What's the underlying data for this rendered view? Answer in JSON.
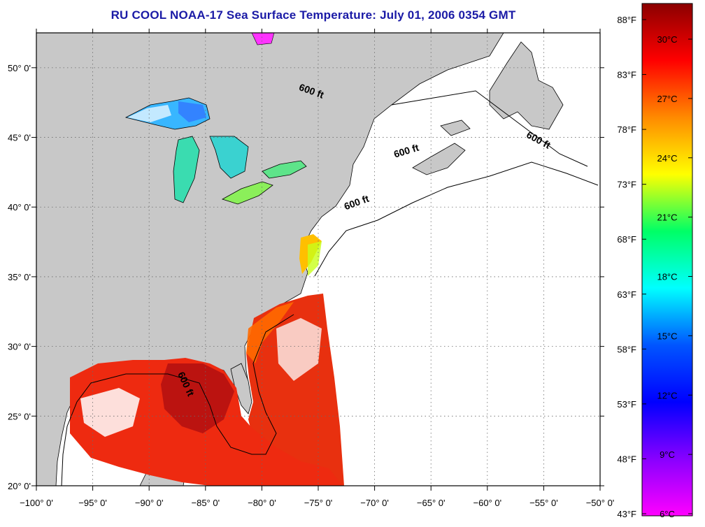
{
  "title": "RU COOL  NOAA-17  Sea Surface Temperature:  July 01, 2006 0354 GMT",
  "map": {
    "lon_range": [
      -100,
      -50
    ],
    "lat_range": [
      20,
      52.5
    ],
    "x_ticks": [
      {
        "lon": -100,
        "label": "−100° 0'"
      },
      {
        "lon": -95,
        "label": "−95° 0'"
      },
      {
        "lon": -90,
        "label": "−90° 0'"
      },
      {
        "lon": -85,
        "label": "−85° 0'"
      },
      {
        "lon": -80,
        "label": "−80° 0'"
      },
      {
        "lon": -75,
        "label": "−75° 0'"
      },
      {
        "lon": -70,
        "label": "−70° 0'"
      },
      {
        "lon": -65,
        "label": "−65° 0'"
      },
      {
        "lon": -60,
        "label": "−60° 0'"
      },
      {
        "lon": -55,
        "label": "−55° 0'"
      },
      {
        "lon": -50,
        "label": "−50° 0'"
      }
    ],
    "y_ticks": [
      {
        "lat": 20,
        "label": "20° 0'"
      },
      {
        "lat": 25,
        "label": "25° 0'"
      },
      {
        "lat": 30,
        "label": "30° 0'"
      },
      {
        "lat": 35,
        "label": "35° 0'"
      },
      {
        "lat": 40,
        "label": "40° 0'"
      },
      {
        "lat": 45,
        "label": "45° 0'"
      },
      {
        "lat": 50,
        "label": "50° 0'"
      }
    ],
    "contour_labels": [
      {
        "text": "600 ft",
        "lon": -75.7,
        "lat": 48.1,
        "angle": 20
      },
      {
        "text": "600 ft",
        "lon": -55.6,
        "lat": 44.6,
        "angle": 28
      },
      {
        "text": "600 ft",
        "lon": -67.1,
        "lat": 43.8,
        "angle": -17
      },
      {
        "text": "600 ft",
        "lon": -71.5,
        "lat": 40.1,
        "angle": -20
      },
      {
        "text": "600 ft",
        "lon": -87.0,
        "lat": 27.2,
        "angle": 65
      }
    ],
    "colors": {
      "land": "#c8c8c8",
      "no_data": "#ffffff",
      "gridline": "#6a6a6a"
    }
  },
  "colorbar": {
    "celsius": [
      "30°C",
      "27°C",
      "24°C",
      "21°C",
      "18°C",
      "15°C",
      "12°C",
      "9°C",
      "6°C"
    ],
    "fahrenheit": [
      "88°F",
      "83°F",
      "78°F",
      "73°F",
      "68°F",
      "63°F",
      "58°F",
      "53°F",
      "48°F",
      "43°F"
    ],
    "stops": [
      "#8b0000",
      "#ff0000",
      "#ff8a00",
      "#ffff00",
      "#00ff66",
      "#00ffff",
      "#0055ff",
      "#0000ff",
      "#8800ff",
      "#ff00ff"
    ]
  }
}
